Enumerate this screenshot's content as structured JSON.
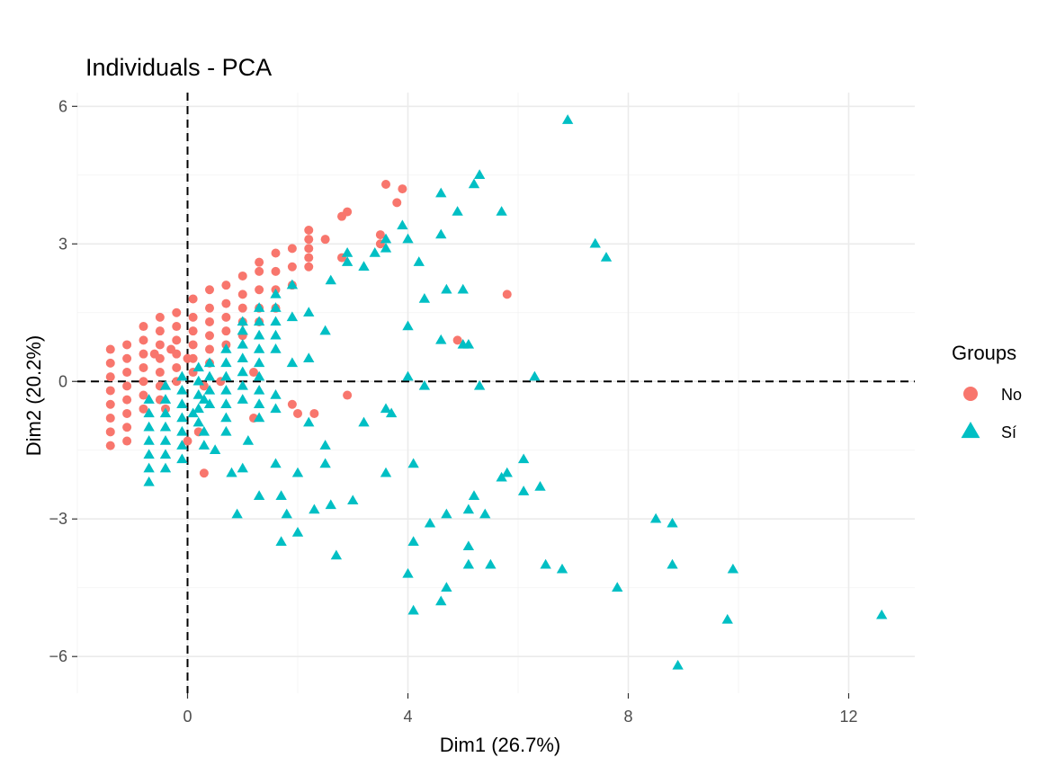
{
  "chart_data": {
    "type": "scatter",
    "title": "Individuals - PCA",
    "xlabel": "Dim1 (26.7%)",
    "ylabel": "Dim2 (20.2%)",
    "xlim": [
      -2.0,
      13.2
    ],
    "ylim": [
      -6.8,
      6.3
    ],
    "x_ticks": [
      0,
      4,
      8,
      12
    ],
    "x_tick_labels": [
      "0",
      "4",
      "8",
      "12"
    ],
    "y_ticks": [
      -6,
      -3,
      0,
      3,
      6
    ],
    "y_tick_labels": [
      "−6",
      "−3",
      "0",
      "3",
      "6"
    ],
    "grid": true,
    "reference_lines": {
      "x": 0,
      "y": 0,
      "style": "dashed"
    },
    "legend": {
      "title": "Groups",
      "position": "right"
    },
    "series": [
      {
        "name": "No",
        "marker": "circle",
        "color": "#F8766D",
        "points": [
          [
            -1.4,
            -1.4
          ],
          [
            -1.4,
            -1.1
          ],
          [
            -1.4,
            -0.8
          ],
          [
            -1.4,
            -0.5
          ],
          [
            -1.4,
            -0.2
          ],
          [
            -1.4,
            0.1
          ],
          [
            -1.4,
            0.4
          ],
          [
            -1.4,
            0.7
          ],
          [
            -1.1,
            -1.3
          ],
          [
            -1.1,
            -1.0
          ],
          [
            -1.1,
            -0.7
          ],
          [
            -1.1,
            -0.4
          ],
          [
            -1.1,
            -0.1
          ],
          [
            -1.1,
            0.2
          ],
          [
            -1.1,
            0.5
          ],
          [
            -1.1,
            0.8
          ],
          [
            -0.8,
            -0.6
          ],
          [
            -0.8,
            -0.3
          ],
          [
            -0.8,
            0.0
          ],
          [
            -0.8,
            0.3
          ],
          [
            -0.8,
            0.6
          ],
          [
            -0.8,
            0.9
          ],
          [
            -0.8,
            1.2
          ],
          [
            -0.5,
            -0.4
          ],
          [
            -0.5,
            -0.1
          ],
          [
            -0.5,
            0.2
          ],
          [
            -0.5,
            0.5
          ],
          [
            -0.5,
            0.8
          ],
          [
            -0.5,
            1.1
          ],
          [
            -0.5,
            1.4
          ],
          [
            -0.2,
            0.0
          ],
          [
            -0.2,
            0.3
          ],
          [
            -0.2,
            0.6
          ],
          [
            -0.2,
            0.9
          ],
          [
            -0.2,
            1.2
          ],
          [
            -0.2,
            1.5
          ],
          [
            0.1,
            0.2
          ],
          [
            0.1,
            0.5
          ],
          [
            0.1,
            0.8
          ],
          [
            0.1,
            1.1
          ],
          [
            0.1,
            1.4
          ],
          [
            0.1,
            1.8
          ],
          [
            0.4,
            0.4
          ],
          [
            0.4,
            0.7
          ],
          [
            0.4,
            1.0
          ],
          [
            0.4,
            1.3
          ],
          [
            0.4,
            1.6
          ],
          [
            0.4,
            2.0
          ],
          [
            0.7,
            0.8
          ],
          [
            0.7,
            1.1
          ],
          [
            0.7,
            1.4
          ],
          [
            0.7,
            1.7
          ],
          [
            0.7,
            2.1
          ],
          [
            1.0,
            1.0
          ],
          [
            1.0,
            1.3
          ],
          [
            1.0,
            1.6
          ],
          [
            1.0,
            1.9
          ],
          [
            1.0,
            2.3
          ],
          [
            1.3,
            1.3
          ],
          [
            1.3,
            1.6
          ],
          [
            1.3,
            2.0
          ],
          [
            1.3,
            2.4
          ],
          [
            1.3,
            2.6
          ],
          [
            1.6,
            1.6
          ],
          [
            1.6,
            2.0
          ],
          [
            1.6,
            2.4
          ],
          [
            1.6,
            2.8
          ],
          [
            1.9,
            2.1
          ],
          [
            1.9,
            2.5
          ],
          [
            1.9,
            2.9
          ],
          [
            2.2,
            2.5
          ],
          [
            2.2,
            2.9
          ],
          [
            2.2,
            3.1
          ],
          [
            2.2,
            3.3
          ],
          [
            2.2,
            2.7
          ],
          [
            2.5,
            3.1
          ],
          [
            2.8,
            2.7
          ],
          [
            2.8,
            3.6
          ],
          [
            2.9,
            3.7
          ],
          [
            3.5,
            3.0
          ],
          [
            3.5,
            3.2
          ],
          [
            3.6,
            4.3
          ],
          [
            3.8,
            3.9
          ],
          [
            3.9,
            4.2
          ],
          [
            5.8,
            1.9
          ],
          [
            4.9,
            0.9
          ],
          [
            -0.3,
            0.7
          ],
          [
            -0.6,
            0.6
          ],
          [
            0.0,
            0.5
          ],
          [
            0.3,
            -0.1
          ],
          [
            0.6,
            0.0
          ],
          [
            1.2,
            0.2
          ],
          [
            1.2,
            -0.8
          ],
          [
            1.9,
            -0.5
          ],
          [
            2.0,
            -0.7
          ],
          [
            2.3,
            -0.7
          ],
          [
            2.9,
            -0.3
          ],
          [
            0.0,
            -1.3
          ],
          [
            0.2,
            -1.1
          ],
          [
            0.3,
            -2.0
          ],
          [
            -0.4,
            -0.6
          ]
        ]
      },
      {
        "name": "Sí",
        "marker": "triangle",
        "color": "#00BFC4",
        "points": [
          [
            -0.7,
            -2.2
          ],
          [
            -0.7,
            -1.9
          ],
          [
            -0.7,
            -1.6
          ],
          [
            -0.7,
            -1.3
          ],
          [
            -0.7,
            -1.0
          ],
          [
            -0.7,
            -0.7
          ],
          [
            -0.7,
            -0.4
          ],
          [
            -0.4,
            -1.9
          ],
          [
            -0.4,
            -1.6
          ],
          [
            -0.4,
            -1.3
          ],
          [
            -0.4,
            -1.0
          ],
          [
            -0.4,
            -0.7
          ],
          [
            -0.4,
            -0.4
          ],
          [
            -0.4,
            -0.1
          ],
          [
            -0.1,
            -1.7
          ],
          [
            -0.1,
            -1.4
          ],
          [
            -0.1,
            -1.1
          ],
          [
            -0.1,
            -0.8
          ],
          [
            -0.1,
            -0.5
          ],
          [
            -0.1,
            -0.2
          ],
          [
            -0.1,
            0.1
          ],
          [
            0.2,
            -0.9
          ],
          [
            0.2,
            -0.6
          ],
          [
            0.2,
            -0.3
          ],
          [
            0.2,
            0.0
          ],
          [
            0.2,
            0.3
          ],
          [
            0.3,
            -1.4
          ],
          [
            0.3,
            -1.1
          ],
          [
            0.4,
            -0.5
          ],
          [
            0.4,
            -0.2
          ],
          [
            0.4,
            0.1
          ],
          [
            0.4,
            0.4
          ],
          [
            0.7,
            -1.1
          ],
          [
            0.7,
            -0.8
          ],
          [
            0.7,
            -0.5
          ],
          [
            0.7,
            -0.2
          ],
          [
            0.7,
            0.1
          ],
          [
            0.7,
            0.4
          ],
          [
            0.7,
            0.7
          ],
          [
            1.0,
            -0.4
          ],
          [
            1.0,
            -0.1
          ],
          [
            1.0,
            0.2
          ],
          [
            1.0,
            0.5
          ],
          [
            1.0,
            0.8
          ],
          [
            1.0,
            1.1
          ],
          [
            1.0,
            1.3
          ],
          [
            1.3,
            -0.8
          ],
          [
            1.3,
            -0.5
          ],
          [
            1.3,
            -0.2
          ],
          [
            1.3,
            0.1
          ],
          [
            1.3,
            0.4
          ],
          [
            1.3,
            0.7
          ],
          [
            1.3,
            1.0
          ],
          [
            1.3,
            1.3
          ],
          [
            1.3,
            1.6
          ],
          [
            1.6,
            -0.6
          ],
          [
            1.6,
            -0.3
          ],
          [
            1.6,
            0.7
          ],
          [
            1.6,
            1.0
          ],
          [
            1.6,
            1.3
          ],
          [
            1.6,
            1.6
          ],
          [
            1.6,
            1.9
          ],
          [
            1.9,
            0.4
          ],
          [
            1.9,
            1.4
          ],
          [
            1.9,
            2.1
          ],
          [
            2.2,
            -0.9
          ],
          [
            2.2,
            0.5
          ],
          [
            2.2,
            1.5
          ],
          [
            2.5,
            1.1
          ],
          [
            2.5,
            -1.4
          ],
          [
            2.6,
            2.2
          ],
          [
            2.9,
            2.6
          ],
          [
            2.9,
            2.8
          ],
          [
            3.2,
            2.5
          ],
          [
            3.4,
            2.8
          ],
          [
            3.6,
            3.1
          ],
          [
            3.6,
            2.9
          ],
          [
            4.0,
            3.1
          ],
          [
            3.9,
            3.4
          ],
          [
            4.6,
            4.1
          ],
          [
            4.9,
            3.7
          ],
          [
            4.6,
            3.2
          ],
          [
            5.3,
            4.5
          ],
          [
            5.2,
            4.3
          ],
          [
            5.7,
            3.7
          ],
          [
            4.2,
            2.6
          ],
          [
            6.9,
            5.7
          ],
          [
            7.4,
            3.0
          ],
          [
            7.6,
            2.7
          ],
          [
            4.7,
            2.0
          ],
          [
            5.0,
            2.0
          ],
          [
            4.3,
            1.8
          ],
          [
            4.0,
            1.2
          ],
          [
            4.6,
            0.9
          ],
          [
            5.0,
            0.8
          ],
          [
            5.1,
            0.8
          ],
          [
            6.3,
            0.1
          ],
          [
            5.3,
            -0.1
          ],
          [
            4.3,
            -0.1
          ],
          [
            4.0,
            0.1
          ],
          [
            3.6,
            -0.6
          ],
          [
            3.7,
            -0.7
          ],
          [
            3.2,
            -0.9
          ],
          [
            1.0,
            -1.9
          ],
          [
            1.6,
            -1.8
          ],
          [
            2.0,
            -2.0
          ],
          [
            2.5,
            -1.8
          ],
          [
            1.7,
            -2.5
          ],
          [
            1.8,
            -2.9
          ],
          [
            1.7,
            -3.5
          ],
          [
            0.9,
            -2.9
          ],
          [
            1.3,
            -2.5
          ],
          [
            2.0,
            -3.3
          ],
          [
            2.3,
            -2.8
          ],
          [
            2.6,
            -2.7
          ],
          [
            2.7,
            -3.8
          ],
          [
            3.0,
            -2.6
          ],
          [
            3.6,
            -2.0
          ],
          [
            4.1,
            -1.8
          ],
          [
            4.1,
            -3.5
          ],
          [
            4.0,
            -4.2
          ],
          [
            4.1,
            -5.0
          ],
          [
            4.4,
            -3.1
          ],
          [
            4.7,
            -2.9
          ],
          [
            4.7,
            -4.5
          ],
          [
            4.6,
            -4.8
          ],
          [
            5.1,
            -2.8
          ],
          [
            5.1,
            -3.6
          ],
          [
            5.1,
            -4.0
          ],
          [
            5.2,
            -2.5
          ],
          [
            5.4,
            -2.9
          ],
          [
            5.5,
            -4.0
          ],
          [
            5.7,
            -2.1
          ],
          [
            5.8,
            -2.0
          ],
          [
            6.1,
            -1.7
          ],
          [
            6.1,
            -2.4
          ],
          [
            6.4,
            -2.3
          ],
          [
            6.5,
            -4.0
          ],
          [
            6.8,
            -4.1
          ],
          [
            7.8,
            -4.5
          ],
          [
            8.5,
            -3.0
          ],
          [
            8.8,
            -3.1
          ],
          [
            8.8,
            -4.0
          ],
          [
            8.9,
            -6.2
          ],
          [
            9.8,
            -5.2
          ],
          [
            9.9,
            -4.1
          ],
          [
            12.6,
            -5.1
          ],
          [
            0.8,
            -2.0
          ],
          [
            0.5,
            -1.5
          ],
          [
            1.1,
            -1.3
          ],
          [
            0.3,
            -0.4
          ],
          [
            0.1,
            -0.7
          ]
        ]
      }
    ]
  }
}
